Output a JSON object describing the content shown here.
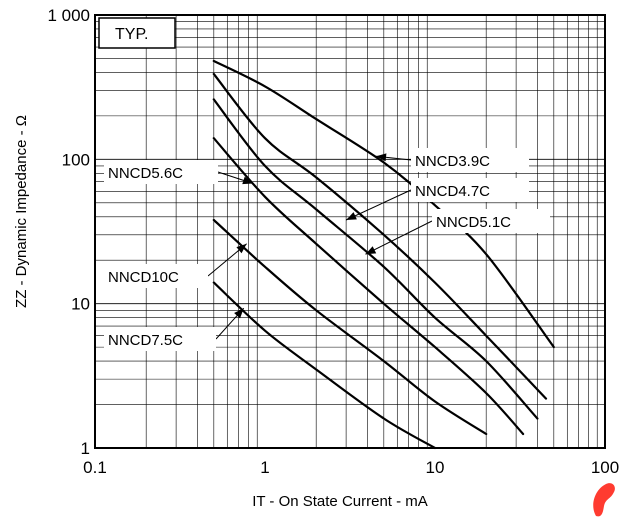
{
  "chart_data": {
    "type": "line",
    "x_scale": "log",
    "y_scale": "log",
    "xlim": [
      0.1,
      100
    ],
    "ylim": [
      1,
      1000
    ],
    "x_ticks": [
      "0.1",
      "1",
      "10",
      "100"
    ],
    "y_ticks": [
      "1",
      "10",
      "100",
      "1 000"
    ],
    "xlabel": "IT - On State Current - mA",
    "ylabel": "ZZ - Dynamic Impedance - Ω",
    "legend_note": "TYP.",
    "grid": true,
    "series": [
      {
        "name": "NNCD3.9C",
        "x": [
          0.5,
          1,
          2,
          5,
          10,
          20,
          50
        ],
        "y": [
          480,
          320,
          190,
          95,
          48,
          22,
          5
        ]
      },
      {
        "name": "NNCD4.7C",
        "x": [
          0.5,
          1,
          2,
          5,
          10,
          20,
          45
        ],
        "y": [
          390,
          140,
          75,
          30,
          14,
          6,
          2.2
        ]
      },
      {
        "name": "NNCD5.1C",
        "x": [
          0.5,
          1,
          2,
          5,
          10,
          20,
          40
        ],
        "y": [
          260,
          90,
          45,
          18,
          8,
          4,
          1.6
        ]
      },
      {
        "name": "NNCD5.6C",
        "x": [
          0.5,
          1,
          2,
          5,
          10,
          20,
          33
        ],
        "y": [
          140,
          55,
          26,
          10,
          5,
          2.4,
          1.25
        ]
      },
      {
        "name": "NNCD10C",
        "x": [
          0.5,
          1,
          2,
          5,
          10,
          20
        ],
        "y": [
          38,
          18,
          9,
          4,
          2.1,
          1.25
        ]
      },
      {
        "name": "NNCD7.5C",
        "x": [
          0.5,
          1,
          2,
          5,
          10
        ],
        "y": [
          14,
          6.5,
          3.5,
          1.6,
          1.0
        ]
      }
    ],
    "labels": [
      {
        "text": "NNCD3.9C",
        "series": "NNCD3.9C"
      },
      {
        "text": "NNCD4.7C",
        "series": "NNCD4.7C"
      },
      {
        "text": "NNCD5.1C",
        "series": "NNCD5.1C"
      },
      {
        "text": "NNCD5.6C",
        "series": "NNCD5.6C"
      },
      {
        "text": "NNCD10C",
        "series": "NNCD10C"
      },
      {
        "text": "NNCD7.5C",
        "series": "NNCD7.5C"
      }
    ]
  }
}
